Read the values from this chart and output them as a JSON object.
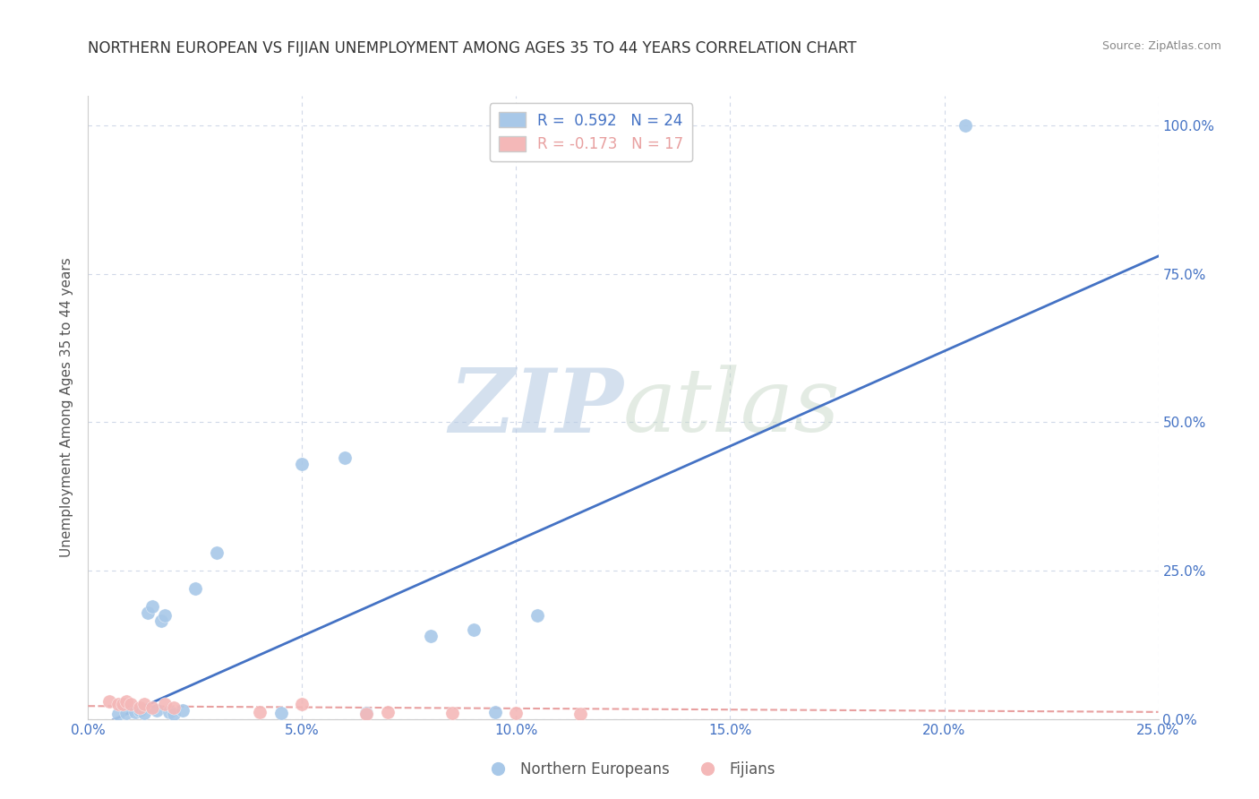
{
  "title": "NORTHERN EUROPEAN VS FIJIAN UNEMPLOYMENT AMONG AGES 35 TO 44 YEARS CORRELATION CHART",
  "source": "Source: ZipAtlas.com",
  "ylabel": "Unemployment Among Ages 35 to 44 years",
  "xlim": [
    0.0,
    0.25
  ],
  "ylim": [
    0.0,
    1.05
  ],
  "xticks": [
    0.0,
    0.05,
    0.1,
    0.15,
    0.2,
    0.25
  ],
  "xticklabels": [
    "0.0%",
    "5.0%",
    "10.0%",
    "15.0%",
    "20.0%",
    "25.0%"
  ],
  "yticks": [
    0.0,
    0.25,
    0.5,
    0.75,
    1.0
  ],
  "yticklabels": [
    "0.0%",
    "25.0%",
    "50.0%",
    "75.0%",
    "100.0%"
  ],
  "northern_european_x": [
    0.007,
    0.009,
    0.011,
    0.012,
    0.013,
    0.014,
    0.015,
    0.016,
    0.017,
    0.018,
    0.019,
    0.02,
    0.022,
    0.025,
    0.03,
    0.045,
    0.05,
    0.06,
    0.065,
    0.08,
    0.09,
    0.095,
    0.105,
    0.205
  ],
  "northern_european_y": [
    0.008,
    0.01,
    0.012,
    0.015,
    0.01,
    0.18,
    0.19,
    0.015,
    0.165,
    0.175,
    0.012,
    0.008,
    0.015,
    0.22,
    0.28,
    0.01,
    0.43,
    0.44,
    0.01,
    0.14,
    0.15,
    0.012,
    0.175,
    1.0
  ],
  "fijian_x": [
    0.005,
    0.007,
    0.008,
    0.009,
    0.01,
    0.012,
    0.013,
    0.015,
    0.018,
    0.02,
    0.04,
    0.05,
    0.065,
    0.07,
    0.085,
    0.1,
    0.115
  ],
  "fijian_y": [
    0.03,
    0.025,
    0.025,
    0.03,
    0.025,
    0.02,
    0.025,
    0.02,
    0.025,
    0.02,
    0.012,
    0.025,
    0.008,
    0.012,
    0.01,
    0.01,
    0.008
  ],
  "ne_color": "#a8c8e8",
  "fijian_color": "#f4b8b8",
  "ne_line_color": "#4472c4",
  "fijian_line_color": "#e8a0a0",
  "ne_r": 0.592,
  "ne_n": 24,
  "fijian_r": -0.173,
  "fijian_n": 17,
  "ne_line_slope": 3.2,
  "ne_line_intercept": -0.02,
  "fijian_line_slope": -0.04,
  "fijian_line_intercept": 0.022,
  "watermark_zip": "ZIP",
  "watermark_atlas": "atlas",
  "watermark_color": "#c8d8ee",
  "background_color": "#ffffff",
  "grid_color": "#d0d8e8",
  "legend_box_color_ne": "#a8c8e8",
  "legend_box_color_fijian": "#f4b8b8",
  "tick_label_color": "#4472c4",
  "axis_label_color": "#555555"
}
